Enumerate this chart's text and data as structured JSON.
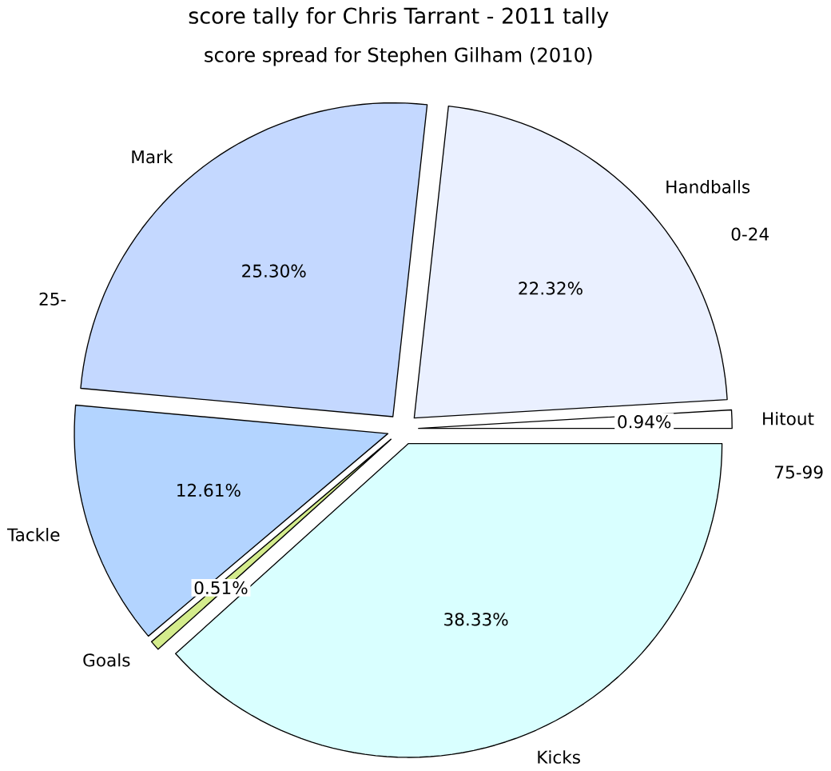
{
  "chart_data": {
    "type": "pie",
    "title": "score tally for Chris Tarrant - 2011 tally",
    "subtitle": "score spread for Stephen Gilham (2010)",
    "categories": [
      "Hitout",
      "Handballs",
      "Mark",
      "Tackle",
      "Goals",
      "Kicks"
    ],
    "values": [
      0.94,
      22.32,
      25.3,
      12.61,
      0.51,
      38.33
    ],
    "value_labels": [
      "0.94%",
      "22.32%",
      "25.30%",
      "12.61%",
      "0.51%",
      "38.33%"
    ],
    "colors": [
      "#ffffff",
      "#eaf0ff",
      "#c4d8ff",
      "#b3d4ff",
      "#d4ec8c",
      "#d9ffff"
    ],
    "annotations": [
      "25-",
      "0-24",
      "75-99"
    ]
  }
}
